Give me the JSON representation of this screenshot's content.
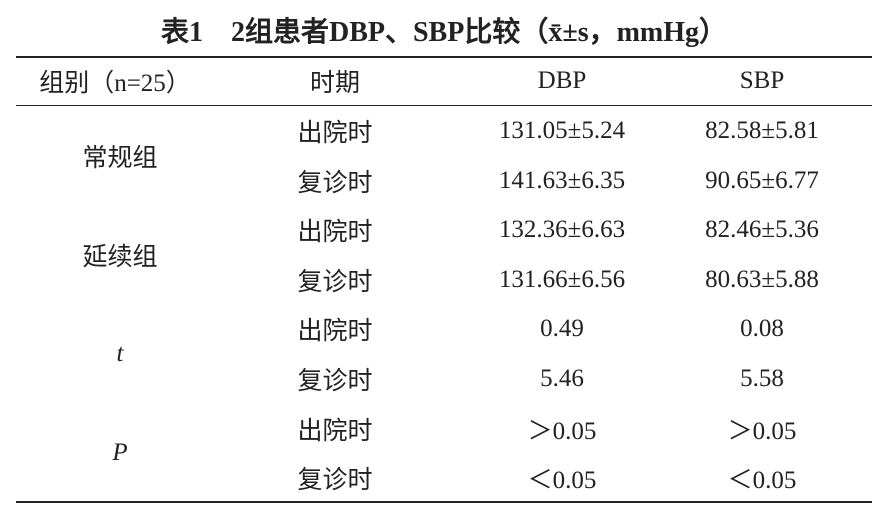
{
  "title": "表1　2组患者DBP、SBP比较（x̄±s，mmHg）",
  "table": {
    "headers": [
      "组别（n=25）",
      "时期",
      "DBP",
      "SBP"
    ],
    "groups": [
      {
        "label": "常规组",
        "rows": [
          [
            "出院时",
            "131.05±5.24",
            "82.58±5.81"
          ],
          [
            "复诊时",
            "141.63±6.35",
            "90.65±6.77"
          ]
        ]
      },
      {
        "label": "延续组",
        "rows": [
          [
            "出院时",
            "132.36±6.63",
            "82.46±5.36"
          ],
          [
            "复诊时",
            "131.66±6.56",
            "80.63±5.88"
          ]
        ]
      },
      {
        "label": "t",
        "rows": [
          [
            "出院时",
            "0.49",
            "0.08"
          ],
          [
            "复诊时",
            "5.46",
            "5.58"
          ]
        ]
      },
      {
        "label": "P",
        "rows": [
          [
            "出院时",
            "＞0.05",
            "＞0.05"
          ],
          [
            "复诊时",
            "＜0.05",
            "＜0.05"
          ]
        ]
      }
    ]
  }
}
